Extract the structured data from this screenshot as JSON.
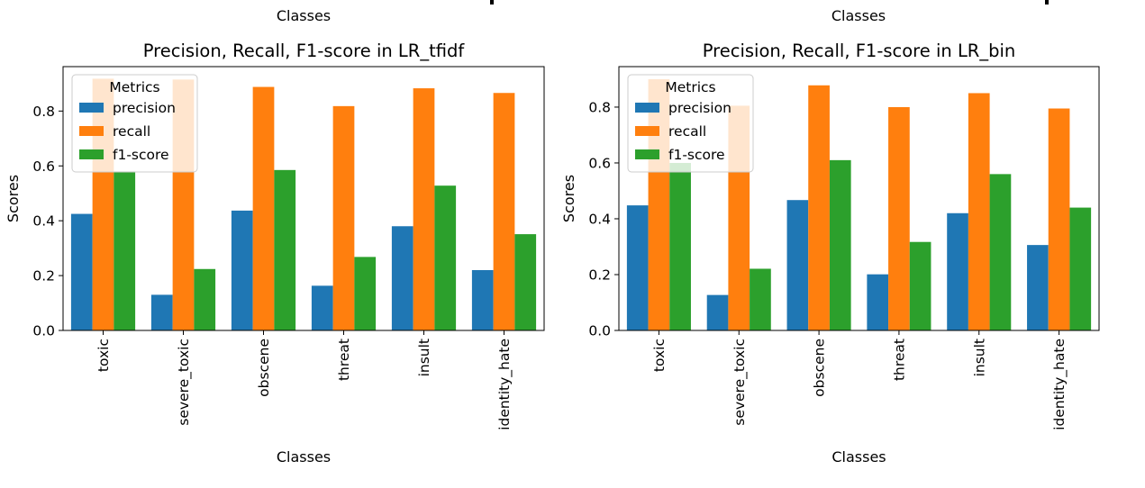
{
  "top_strip": {
    "xlabel_left": "Classes",
    "xlabel_right": "Classes"
  },
  "chart_data": [
    {
      "type": "bar",
      "title": "Precision, Recall, F1-score in LR_tfidf",
      "xlabel": "Classes",
      "ylabel": "Scores",
      "categories": [
        "toxic",
        "severe_toxic",
        "obscene",
        "threat",
        "insult",
        "identity_hate"
      ],
      "series": [
        {
          "name": "precision",
          "color": "#1f77b4",
          "values": [
            0.425,
            0.13,
            0.437,
            0.163,
            0.38,
            0.22
          ]
        },
        {
          "name": "recall",
          "color": "#ff7f0e",
          "values": [
            0.918,
            0.915,
            0.888,
            0.818,
            0.883,
            0.866
          ]
        },
        {
          "name": "f1-score",
          "color": "#2ca02c",
          "values": [
            0.58,
            0.224,
            0.585,
            0.268,
            0.528,
            0.351
          ]
        }
      ],
      "yticks": [
        0.0,
        0.2,
        0.4,
        0.6,
        0.8
      ],
      "ylim": [
        0,
        0.962
      ],
      "legend": {
        "title": "Metrics",
        "placement": "top-left"
      },
      "grid": false
    },
    {
      "type": "bar",
      "title": "Precision, Recall, F1-score in LR_bin",
      "xlabel": "Classes",
      "ylabel": "Scores",
      "categories": [
        "toxic",
        "severe_toxic",
        "obscene",
        "threat",
        "insult",
        "identity_hate"
      ],
      "series": [
        {
          "name": "precision",
          "color": "#1f77b4",
          "values": [
            0.448,
            0.127,
            0.467,
            0.201,
            0.42,
            0.306
          ]
        },
        {
          "name": "recall",
          "color": "#ff7f0e",
          "values": [
            0.9,
            0.805,
            0.878,
            0.8,
            0.85,
            0.795
          ]
        },
        {
          "name": "f1-score",
          "color": "#2ca02c",
          "values": [
            0.6,
            0.221,
            0.61,
            0.317,
            0.56,
            0.44
          ]
        }
      ],
      "yticks": [
        0.0,
        0.2,
        0.4,
        0.6,
        0.8
      ],
      "ylim": [
        0,
        0.945
      ],
      "legend": {
        "title": "Metrics",
        "placement": "top-left"
      },
      "grid": false
    }
  ]
}
